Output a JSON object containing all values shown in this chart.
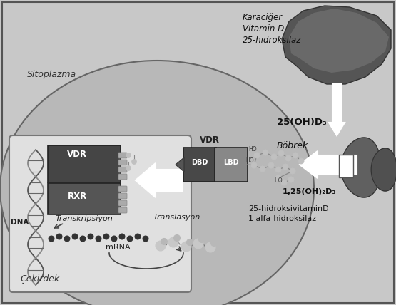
{
  "bg_color": "#c8c8c8",
  "cell_fill": "#b0b0b0",
  "nucleus_fill": "#d8d8d8",
  "nucleus_border": "#888888",
  "white": "#ffffff",
  "dark_gray": "#484848",
  "mid_gray": "#707070",
  "labels": {
    "karaciger": "Karaciğer",
    "vitamin_d": "Vitamin D",
    "hidroksilaz25": "25-hidroksilaz",
    "oh_d3_25": "25(OH)D₃",
    "bobrek": "Böbrek",
    "oh2_d3_125": "1,25(OH)₂D₃",
    "hidroksilaz_label1": "25-hidroksivitaminD",
    "hidroksilaz_label2": "1 alfa-hidroksilaz",
    "sitoplazma": "Sitoplazma",
    "cekirdek": "Çekirdek",
    "vdr1": "VDR",
    "vdr2": "VDR",
    "rxr": "RXR",
    "dbd": "DBD",
    "lbd": "LBD",
    "dna": "DNA",
    "transkripsiyon": "Transkripsiyon",
    "translasyon": "Translasyon",
    "mrna": "mRNA"
  }
}
